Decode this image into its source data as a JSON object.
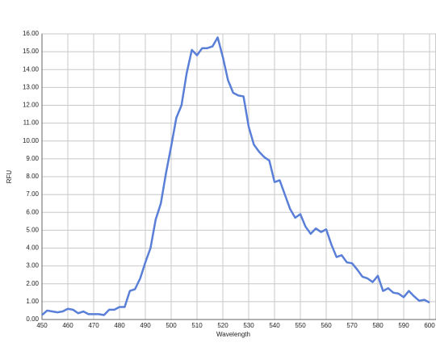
{
  "chart_data": {
    "type": "line",
    "xlabel": "Wavelength",
    "ylabel": "RFU",
    "x": [
      450,
      452,
      454,
      456,
      458,
      460,
      462,
      464,
      466,
      468,
      470,
      472,
      474,
      476,
      478,
      480,
      482,
      484,
      486,
      488,
      490,
      492,
      494,
      496,
      498,
      500,
      502,
      504,
      506,
      508,
      510,
      512,
      514,
      516,
      518,
      520,
      522,
      524,
      526,
      528,
      530,
      532,
      534,
      536,
      538,
      540,
      542,
      544,
      546,
      548,
      550,
      552,
      554,
      556,
      558,
      560,
      562,
      564,
      566,
      568,
      570,
      572,
      574,
      576,
      578,
      580,
      582,
      584,
      586,
      588,
      590,
      592,
      594,
      596,
      598,
      600
    ],
    "values": [
      0.25,
      0.5,
      0.45,
      0.4,
      0.45,
      0.6,
      0.55,
      0.35,
      0.45,
      0.3,
      0.3,
      0.3,
      0.25,
      0.55,
      0.55,
      0.7,
      0.7,
      1.6,
      1.7,
      2.3,
      3.2,
      4.0,
      5.6,
      6.5,
      8.2,
      9.7,
      11.3,
      12.0,
      13.8,
      15.1,
      14.8,
      15.2,
      15.2,
      15.3,
      15.8,
      14.7,
      13.4,
      12.7,
      12.55,
      12.5,
      10.8,
      9.8,
      9.4,
      9.1,
      8.9,
      7.7,
      7.8,
      7.0,
      6.2,
      5.7,
      5.9,
      5.2,
      4.8,
      5.1,
      4.9,
      5.05,
      4.2,
      3.5,
      3.6,
      3.2,
      3.15,
      2.8,
      2.4,
      2.3,
      2.1,
      2.45,
      1.6,
      1.75,
      1.5,
      1.45,
      1.25,
      1.6,
      1.3,
      1.05,
      1.1,
      0.95
    ],
    "color": "#5a7fd8",
    "xlim": [
      450,
      602.5
    ],
    "xticks": [
      450,
      460,
      470,
      480,
      490,
      500,
      510,
      520,
      530,
      540,
      550,
      560,
      570,
      580,
      590,
      600
    ],
    "ylim": [
      0,
      16
    ],
    "yticks": [
      {
        "value": 0,
        "label": "0.00"
      },
      {
        "value": 1,
        "label": "1.00"
      },
      {
        "value": 2,
        "label": "2.00"
      },
      {
        "value": 3,
        "label": "3.00"
      },
      {
        "value": 4,
        "label": "4.00"
      },
      {
        "value": 5,
        "label": "5.00"
      },
      {
        "value": 6,
        "label": "6.00"
      },
      {
        "value": 7,
        "label": "7.00"
      },
      {
        "value": 8,
        "label": "8.00"
      },
      {
        "value": 9,
        "label": "9.00"
      },
      {
        "value": 10,
        "label": "10.00"
      },
      {
        "value": 11,
        "label": "11.00"
      },
      {
        "value": 12,
        "label": "12.00"
      },
      {
        "value": 13,
        "label": "13.00"
      },
      {
        "value": 14,
        "label": "14.00"
      },
      {
        "value": 15,
        "label": "15.00"
      },
      {
        "value": 16,
        "label": "16.00"
      }
    ],
    "grid": true
  }
}
